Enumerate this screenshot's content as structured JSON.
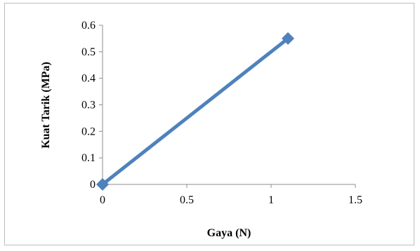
{
  "chart_data": {
    "type": "scatter",
    "title": "",
    "xlabel": "Gaya (N)",
    "ylabel": "Kuat Tarik (MPa)",
    "xlim": [
      0,
      1.5
    ],
    "ylim": [
      0,
      0.6
    ],
    "xticks": [
      "0",
      "0.5",
      "1",
      "1.5"
    ],
    "yticks": [
      "0",
      "0.1",
      "0.2",
      "0.3",
      "0.4",
      "0.5",
      "0.6"
    ],
    "grid": false,
    "legend": "none",
    "series": [
      {
        "values": [
          {
            "x": 0,
            "y": 0
          },
          {
            "x": 1.1,
            "y": 0.55
          }
        ],
        "color": "#4f81bd",
        "marker": "diamond",
        "line": true
      }
    ]
  }
}
